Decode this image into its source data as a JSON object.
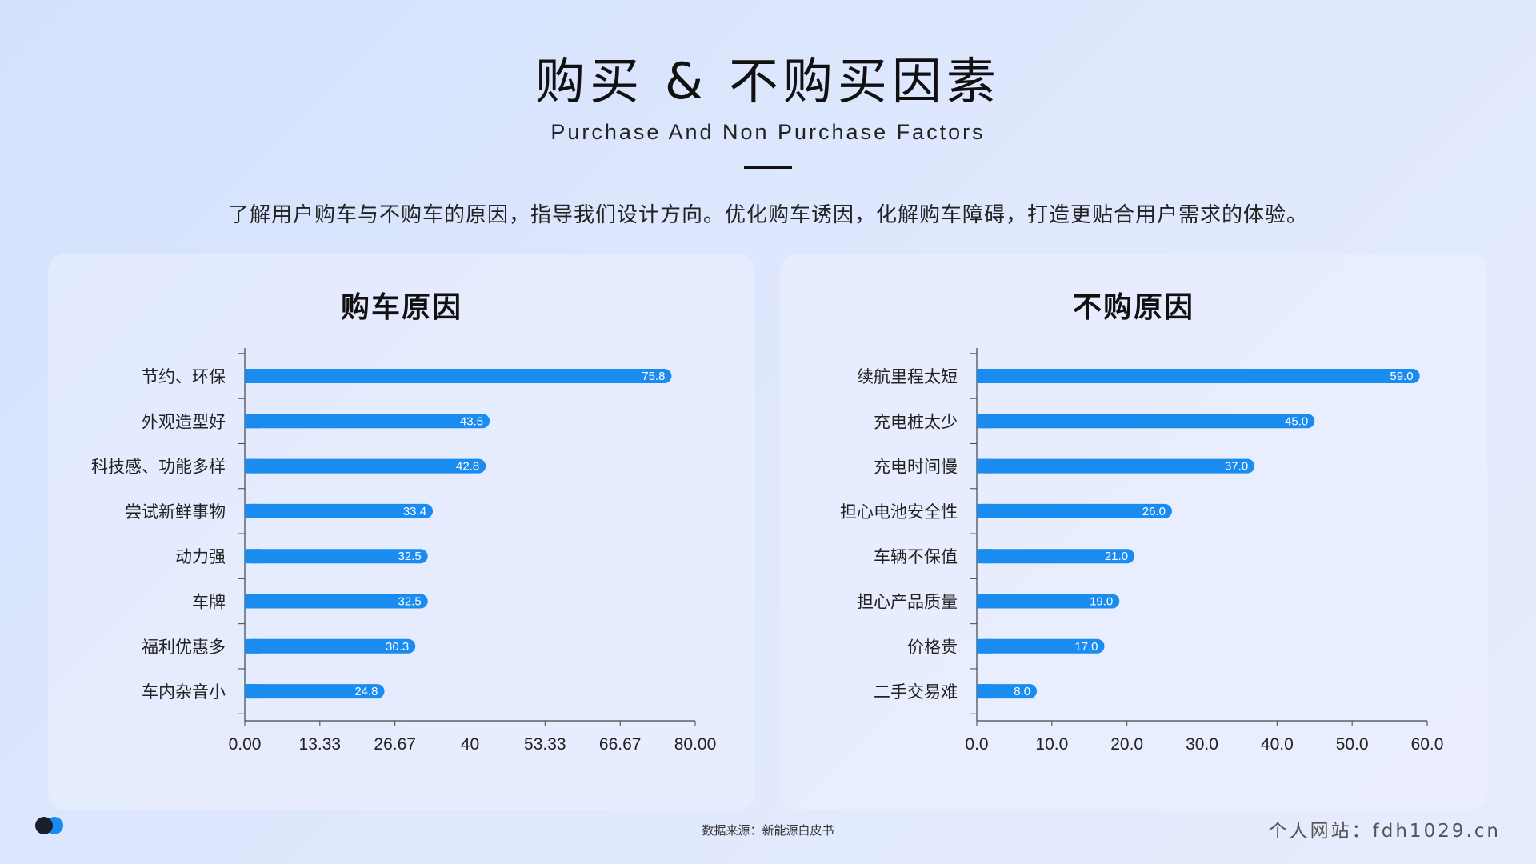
{
  "header": {
    "title": "购买 & 不购买因素",
    "subtitle": "Purchase And Non Purchase Factors",
    "description": "了解用户购车与不购车的原因，指导我们设计方向。优化购车诱因，化解购车障碍，打造更贴合用户需求的体验。"
  },
  "colors": {
    "bar": "#1a8cf0",
    "bar_label": "#ffffff",
    "axis": "#444444"
  },
  "chart_data": [
    {
      "type": "bar",
      "orientation": "horizontal",
      "title": "购车原因",
      "categories": [
        "节约、环保",
        "外观造型好",
        "科技感、功能多样",
        "尝试新鲜事物",
        "动力强",
        "车牌",
        "福利优惠多",
        "车内杂音小"
      ],
      "values": [
        75.8,
        43.5,
        42.8,
        33.4,
        32.5,
        32.5,
        30.3,
        24.8
      ],
      "value_labels": [
        "75.8",
        "43.5",
        "42.8",
        "33.4",
        "32.5",
        "32.5",
        "30.3",
        "24.8"
      ],
      "xlim": [
        0,
        80
      ],
      "ticks": [
        0,
        13.33,
        26.67,
        40,
        53.33,
        66.67,
        80
      ],
      "tick_labels": [
        "0.00",
        "13.33",
        "26.67",
        "40",
        "53.33",
        "66.67",
        "80.00"
      ],
      "xlabel": "",
      "ylabel": "",
      "grid": false
    },
    {
      "type": "bar",
      "orientation": "horizontal",
      "title": "不购原因",
      "categories": [
        "续航里程太短",
        "充电桩太少",
        "充电时间慢",
        "担心电池安全性",
        "车辆不保值",
        "担心产品质量",
        "价格贵",
        "二手交易难"
      ],
      "values": [
        59.0,
        45.0,
        37.0,
        26.0,
        21.0,
        19.0,
        17.0,
        8.0
      ],
      "value_labels": [
        "59.0",
        "45.0",
        "37.0",
        "26.0",
        "21.0",
        "19.0",
        "17.0",
        "8.0"
      ],
      "xlim": [
        0,
        60
      ],
      "ticks": [
        0,
        10,
        20,
        30,
        40,
        50,
        60
      ],
      "tick_labels": [
        "0.0",
        "10.0",
        "20.0",
        "30.0",
        "40.0",
        "50.0",
        "60.0"
      ],
      "xlabel": "",
      "ylabel": "",
      "grid": false
    }
  ],
  "footer": {
    "source": "数据来源：新能源白皮书",
    "site": "个人网站：fdh1029.cn"
  }
}
